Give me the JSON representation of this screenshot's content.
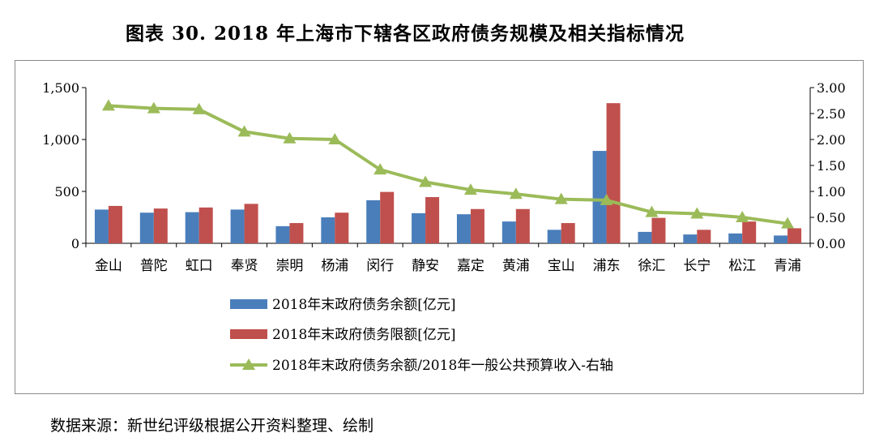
{
  "title": "图表 30. 2018 年上海市下辖各区政府债务规模及相关指标情况",
  "source": "数据来源：新世纪评级根据公开资料整理、绘制",
  "colors": {
    "debt_balance": "#4A7EBB",
    "debt_limit": "#C0504D",
    "ratio_line": "#9BBB59"
  },
  "chart_data": {
    "type": "bar",
    "title": "图表 30. 2018 年上海市下辖各区政府债务规模及相关指标情况",
    "categories": [
      "金山",
      "普陀",
      "虹口",
      "奉贤",
      "崇明",
      "杨浦",
      "闵行",
      "静安",
      "嘉定",
      "黄浦",
      "宝山",
      "浦东",
      "徐汇",
      "长宁",
      "松江",
      "青浦"
    ],
    "series": [
      {
        "name": "2018年末政府债务余额[亿元]",
        "axis": "left",
        "kind": "bar",
        "values": [
          325,
          295,
          300,
          325,
          165,
          250,
          415,
          290,
          280,
          210,
          130,
          890,
          110,
          85,
          95,
          75
        ]
      },
      {
        "name": "2018年末政府债务限额[亿元]",
        "axis": "left",
        "kind": "bar",
        "values": [
          360,
          335,
          345,
          380,
          195,
          295,
          495,
          445,
          330,
          330,
          195,
          1350,
          245,
          130,
          210,
          145
        ]
      },
      {
        "name": "2018年末政府债务余额/2018年一般公共预算收入-右轴",
        "axis": "right",
        "kind": "line",
        "values": [
          2.65,
          2.6,
          2.58,
          2.15,
          2.02,
          2.0,
          1.42,
          1.18,
          1.03,
          0.95,
          0.85,
          0.83,
          0.6,
          0.57,
          0.5,
          0.38
        ]
      }
    ],
    "y_left": {
      "min": 0,
      "max": 1500,
      "ticks": [
        "1,500",
        "1,000",
        "500",
        "0"
      ],
      "tick_values": [
        1500,
        1000,
        500,
        0
      ]
    },
    "y_right": {
      "min": 0,
      "max": 3.0,
      "ticks": [
        "3.00",
        "2.50",
        "2.00",
        "1.50",
        "1.00",
        "0.50",
        "0.00"
      ],
      "tick_values": [
        3,
        2.5,
        2,
        1.5,
        1,
        0.5,
        0
      ]
    },
    "legend_position": "bottom-center"
  }
}
